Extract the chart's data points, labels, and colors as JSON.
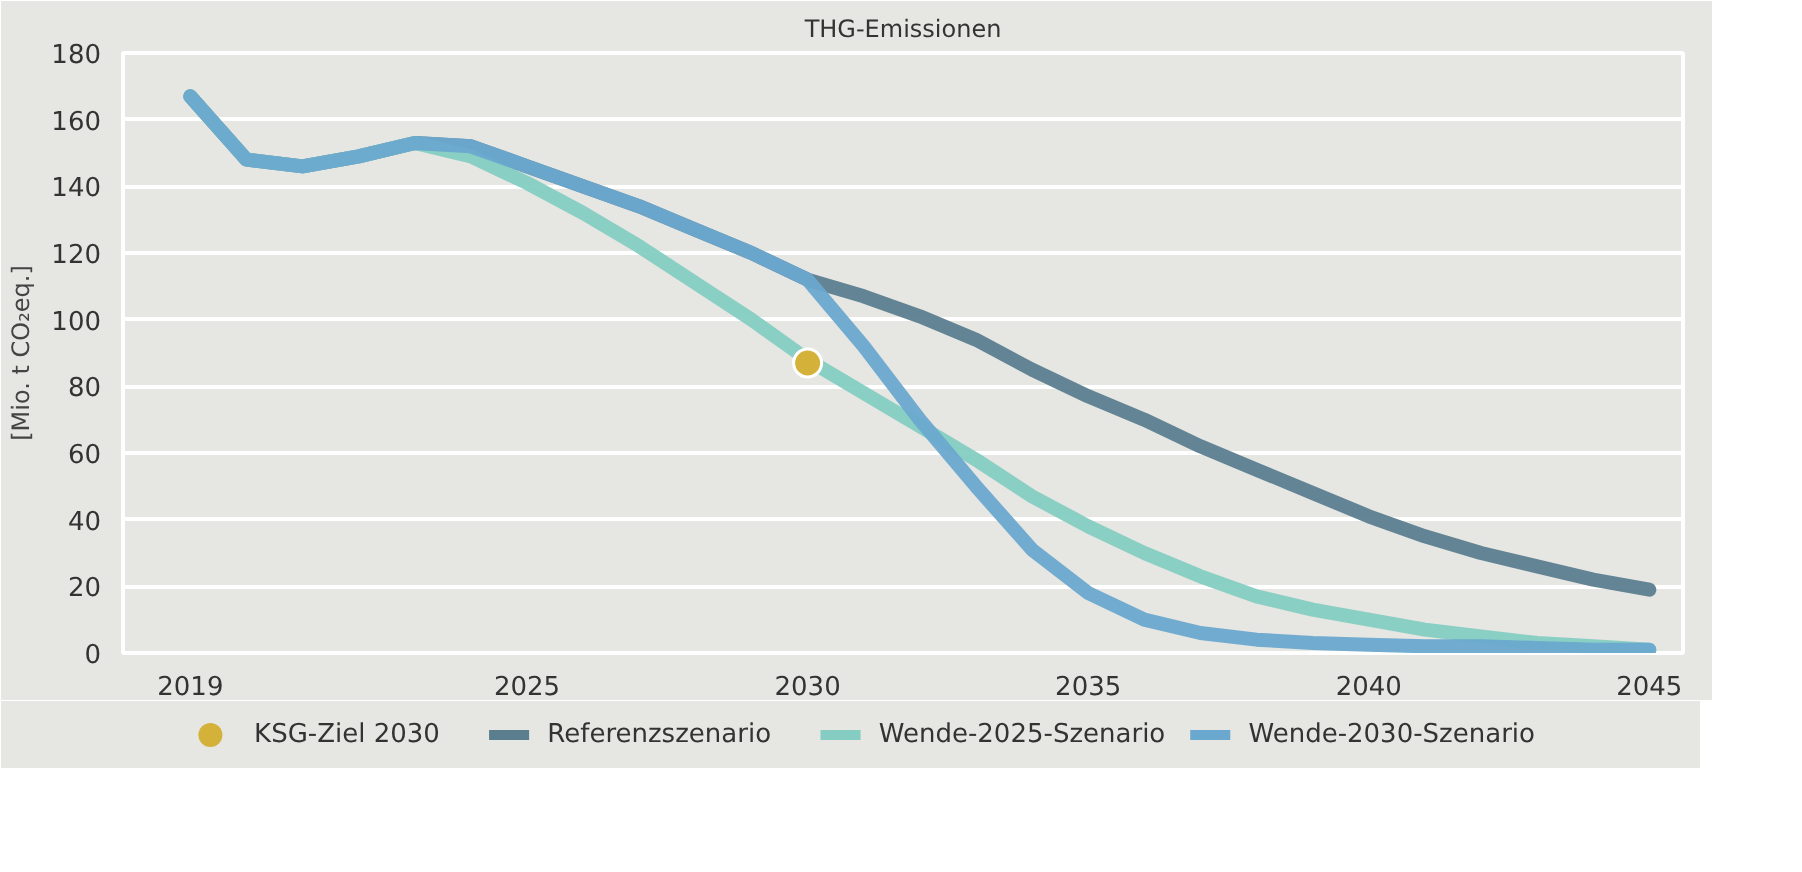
{
  "chart_data": {
    "type": "line",
    "title": "THG-Emissionen",
    "ylabel": "[Mio. t CO₂eq.]",
    "x": [
      2019,
      2020,
      2021,
      2022,
      2023,
      2024,
      2025,
      2026,
      2027,
      2028,
      2029,
      2030,
      2031,
      2032,
      2033,
      2034,
      2035,
      2036,
      2037,
      2038,
      2039,
      2040,
      2041,
      2042,
      2043,
      2044,
      2045
    ],
    "series": [
      {
        "name": "KSG-Ziel 2030",
        "type": "scatter",
        "color": "#d4b23a",
        "x": [
          2030
        ],
        "values": [
          87
        ]
      },
      {
        "name": "Referenzszenario",
        "color": "#5b7e8f",
        "values": [
          167,
          148,
          146,
          149,
          153,
          152,
          146,
          140,
          134,
          127,
          120,
          112,
          107,
          101,
          94,
          85,
          77,
          70,
          62,
          55,
          48,
          41,
          35,
          30,
          26,
          22,
          19
        ]
      },
      {
        "name": "Wende-2025-Szenario",
        "color": "#85cdc2",
        "values": [
          167,
          148,
          146,
          149,
          153,
          149,
          141,
          132,
          122,
          111,
          100,
          88,
          78,
          68,
          58,
          47,
          38,
          30,
          23,
          17,
          13,
          10,
          7,
          5,
          3,
          2,
          1
        ]
      },
      {
        "name": "Wende-2030-Szenario",
        "color": "#6aa8cf",
        "values": [
          167,
          148,
          146,
          149,
          153,
          152,
          146,
          140,
          134,
          127,
          120,
          112,
          92,
          70,
          50,
          31,
          18,
          10,
          6,
          4,
          3,
          2.5,
          2,
          2,
          1.5,
          1,
          1
        ]
      }
    ],
    "xlim": [
      2017.8,
      2045.6
    ],
    "xticks": [
      2019,
      2025,
      2030,
      2035,
      2040,
      2045
    ],
    "ylim": [
      0,
      180
    ],
    "yticks": [
      0,
      20,
      40,
      60,
      80,
      100,
      120,
      140,
      160,
      180
    ],
    "grid": "y",
    "legend": "bottom",
    "line_style": "solid"
  }
}
